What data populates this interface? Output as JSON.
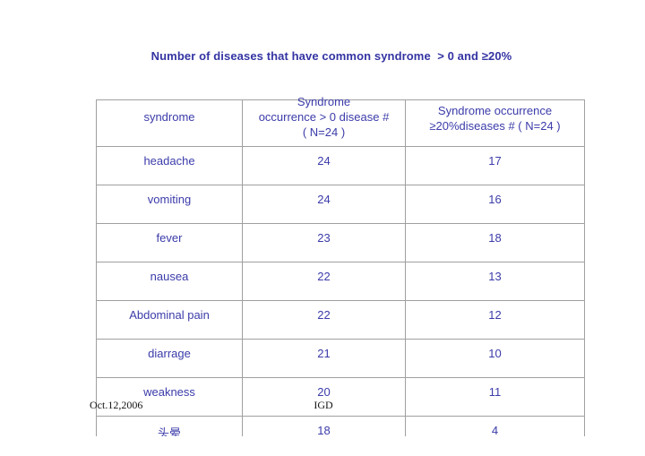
{
  "slide": {
    "title": "Number of diseases that have common syndrome  > 0 and ≥20%",
    "footer": {
      "date": "Oct.12,2006",
      "org": "IGD"
    }
  },
  "table": {
    "headers": {
      "col1": "syndrome",
      "col2_line1": "Syndrome",
      "col2_line2": "occurrence > 0 disease #",
      "col2_line3": "( N=24 )",
      "col3_line1": "Syndrome occurrence",
      "col3_line2": "≥20%diseases # ( N=24 )"
    },
    "rows": [
      {
        "syndrome": "headache",
        "gt0_count": "24",
        "ge20_count": "17"
      },
      {
        "syndrome": "vomiting",
        "gt0_count": "24",
        "ge20_count": "16"
      },
      {
        "syndrome": "fever",
        "gt0_count": "23",
        "ge20_count": "18"
      },
      {
        "syndrome": "nausea",
        "gt0_count": "22",
        "ge20_count": "13"
      },
      {
        "syndrome": "Abdominal pain",
        "gt0_count": "22",
        "ge20_count": "12"
      },
      {
        "syndrome": "diarrage",
        "gt0_count": "21",
        "ge20_count": "10"
      },
      {
        "syndrome": "weakness",
        "gt0_count": "20",
        "ge20_count": "11"
      },
      {
        "syndrome": "头晕",
        "gt0_count": "18",
        "ge20_count": "4"
      }
    ]
  },
  "colors": {
    "text_blue": "#3b3baa",
    "title_blue": "#3434a3",
    "border_gray": "#a0a0a0",
    "footer_black": "#141414"
  }
}
